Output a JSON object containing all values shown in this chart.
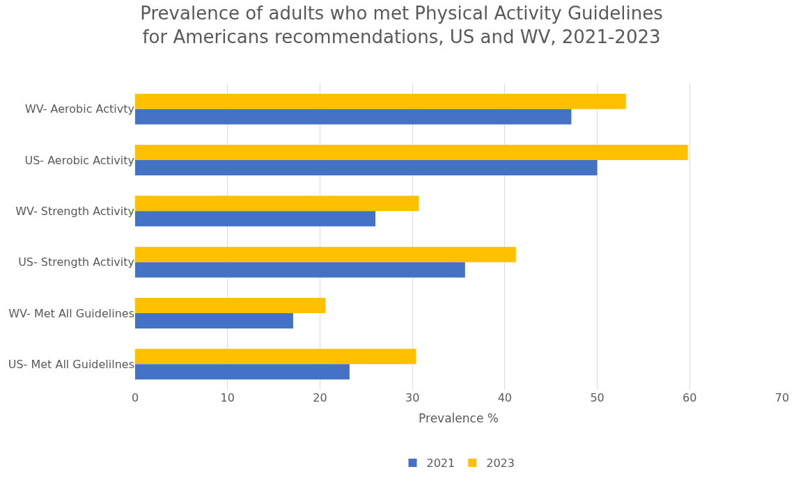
{
  "chart_data": {
    "type": "bar",
    "orientation": "horizontal",
    "title": "Prevalence of adults who met Physical Activity Guidelines\nfor Americans recommendations, US and WV, 2021-2023",
    "xlabel": "Prevalence %",
    "categories": [
      "WV- Aerobic Activty",
      "US- Aerobic Activity",
      "WV- Strength Activity",
      "US- Strength Activity",
      "WV- Met All Guidelines",
      "US- Met All Guidelilnes"
    ],
    "series": [
      {
        "name": "2021",
        "color": "#4472c4",
        "values": [
          47.2,
          50.0,
          26.0,
          35.7,
          17.1,
          23.2
        ]
      },
      {
        "name": "2023",
        "color": "#ffc000",
        "values": [
          53.1,
          59.8,
          30.7,
          41.2,
          20.6,
          30.4
        ]
      }
    ],
    "xlim": [
      0,
      70
    ],
    "xticks": [
      0,
      10,
      20,
      30,
      40,
      50,
      60,
      70
    ],
    "grid": "x",
    "legend": "bottom"
  }
}
